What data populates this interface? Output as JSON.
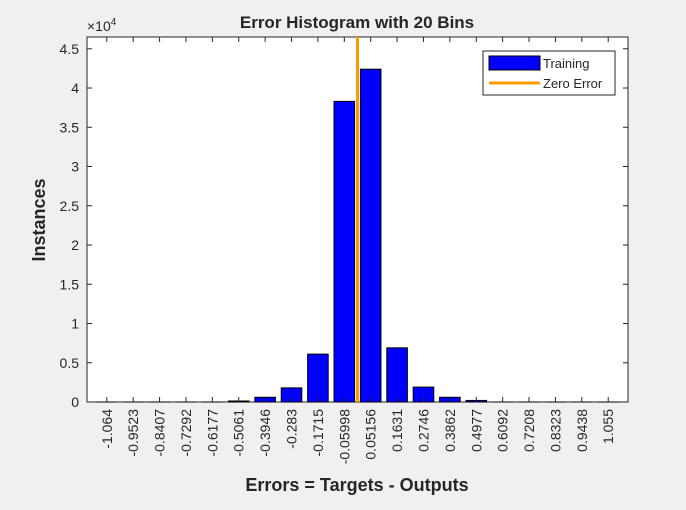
{
  "chart_data": {
    "type": "bar",
    "title": "Error Histogram with 20 Bins",
    "xlabel": "Errors = Targets - Outputs",
    "ylabel": "Instances",
    "y_exponent_label": "×10",
    "y_exponent_power": "4",
    "ylim": [
      0,
      4.65
    ],
    "yticks": [
      "0",
      "0.5",
      "1",
      "1.5",
      "2",
      "2.5",
      "3",
      "3.5",
      "4",
      "4.5"
    ],
    "categories": [
      "-1.064",
      "-0.9523",
      "-0.8407",
      "-0.7292",
      "-0.6177",
      "-0.5061",
      "-0.3946",
      "-0.283",
      "-0.1715",
      "-0.05998",
      "0.05156",
      "0.1631",
      "0.2746",
      "0.3862",
      "0.4977",
      "0.6092",
      "0.7208",
      "0.8323",
      "0.9438",
      "1.055"
    ],
    "series": [
      {
        "name": "Training",
        "color": "#0000ff",
        "values": [
          0,
          0,
          0,
          0,
          0,
          0.01,
          0.06,
          0.18,
          0.61,
          3.83,
          4.24,
          0.69,
          0.19,
          0.06,
          0.02,
          0,
          0,
          0,
          0,
          0
        ]
      }
    ],
    "zero_error": {
      "name": "Zero Error",
      "color": "#ff9900",
      "x_position_between": [
        9,
        10
      ]
    },
    "legend_position": "top-right",
    "grid": false
  }
}
